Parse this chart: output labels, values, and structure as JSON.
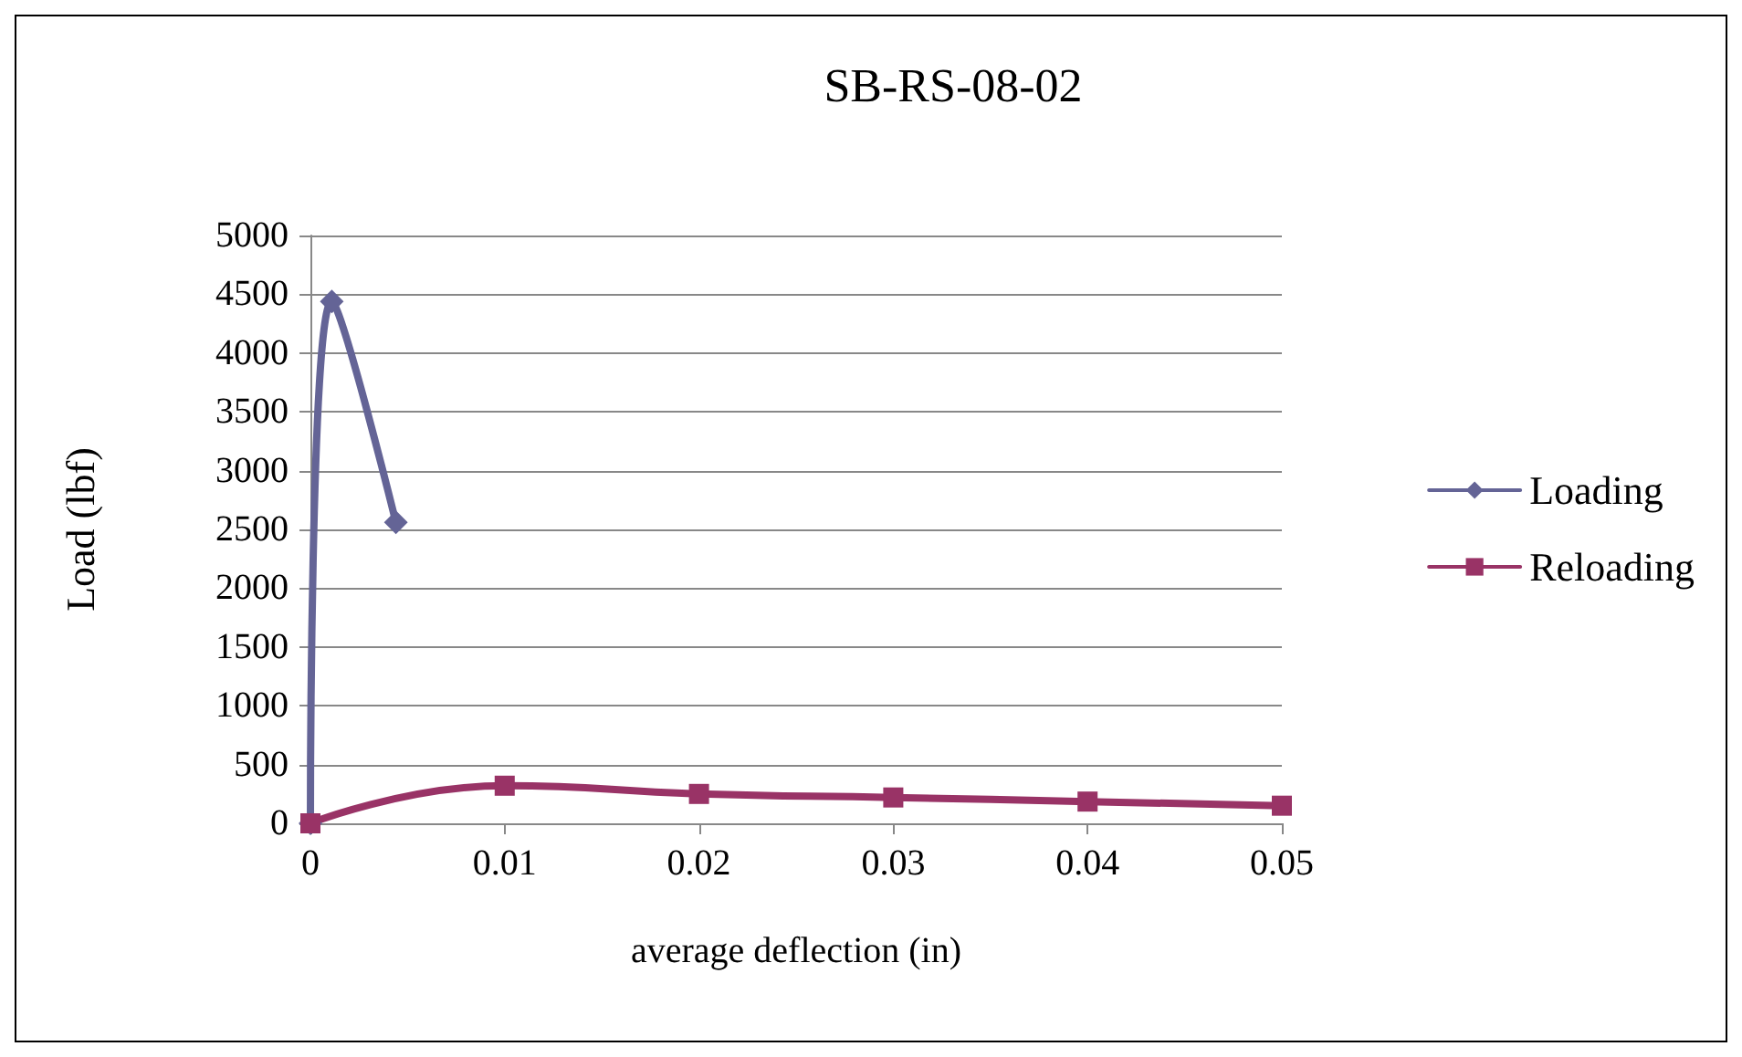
{
  "chart_data": {
    "type": "line",
    "title": "SB-RS-08-02",
    "xlabel": "average deflection (in)",
    "ylabel": "Load (lbf)",
    "xlim": [
      0,
      0.05
    ],
    "xticks": [
      0,
      0.01,
      0.02,
      0.03,
      0.04,
      0.05
    ],
    "ylim": [
      0,
      5000
    ],
    "yticks": [
      0,
      500,
      1000,
      1500,
      2000,
      2500,
      3000,
      3500,
      4000,
      4500,
      5000
    ],
    "grid": "y",
    "legend": "right",
    "series": [
      {
        "name": "Loading",
        "color": "#646496",
        "marker": "diamond",
        "x": [
          0,
          0.0011,
          0.0044
        ],
        "values": [
          0,
          4440,
          2560
        ]
      },
      {
        "name": "Reloading",
        "color": "#993366",
        "marker": "square",
        "x": [
          0,
          0.01,
          0.02,
          0.03,
          0.04,
          0.05
        ],
        "values": [
          0,
          320,
          250,
          220,
          185,
          150
        ]
      }
    ]
  }
}
